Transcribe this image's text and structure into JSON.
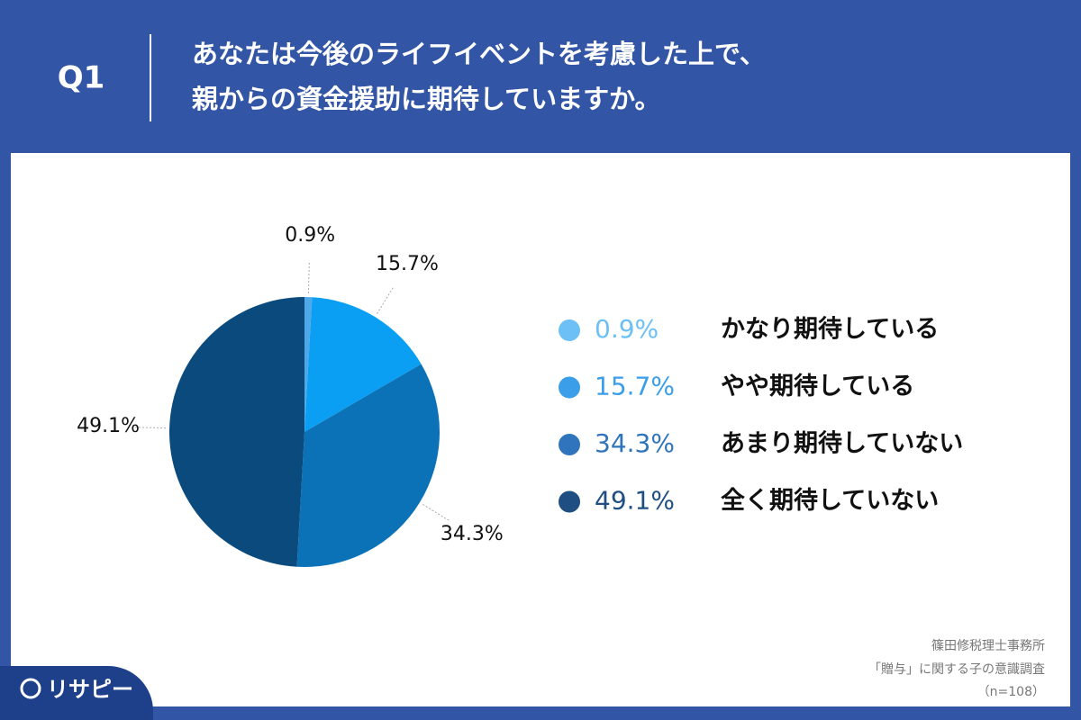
{
  "header": {
    "label": "Q1"
  },
  "chart_data": {
    "type": "pie",
    "title": [
      "あなたは今後のライフイベントを考慮した上で、",
      "親からの資金援助に期待していますか。"
    ],
    "categories": [
      "かなり期待している",
      "やや期待している",
      "あまり期待していない",
      "全く期待していない"
    ],
    "values": [
      0.9,
      15.7,
      34.3,
      49.1
    ],
    "value_labels": [
      "0.9%",
      "15.7%",
      "34.3%",
      "49.1%"
    ],
    "colors": [
      "#4ea8e8",
      "#0a9ff2",
      "#0b72b7",
      "#0a4a7d"
    ],
    "legend_colors": [
      "#6cc0f5",
      "#3a9ee8",
      "#2f74bc",
      "#1f4f82"
    ]
  },
  "source": [
    "篠田修税理士事務所",
    "「贈与」に関する子の意識調査",
    "（n=108）"
  ],
  "logo": "リサピー"
}
